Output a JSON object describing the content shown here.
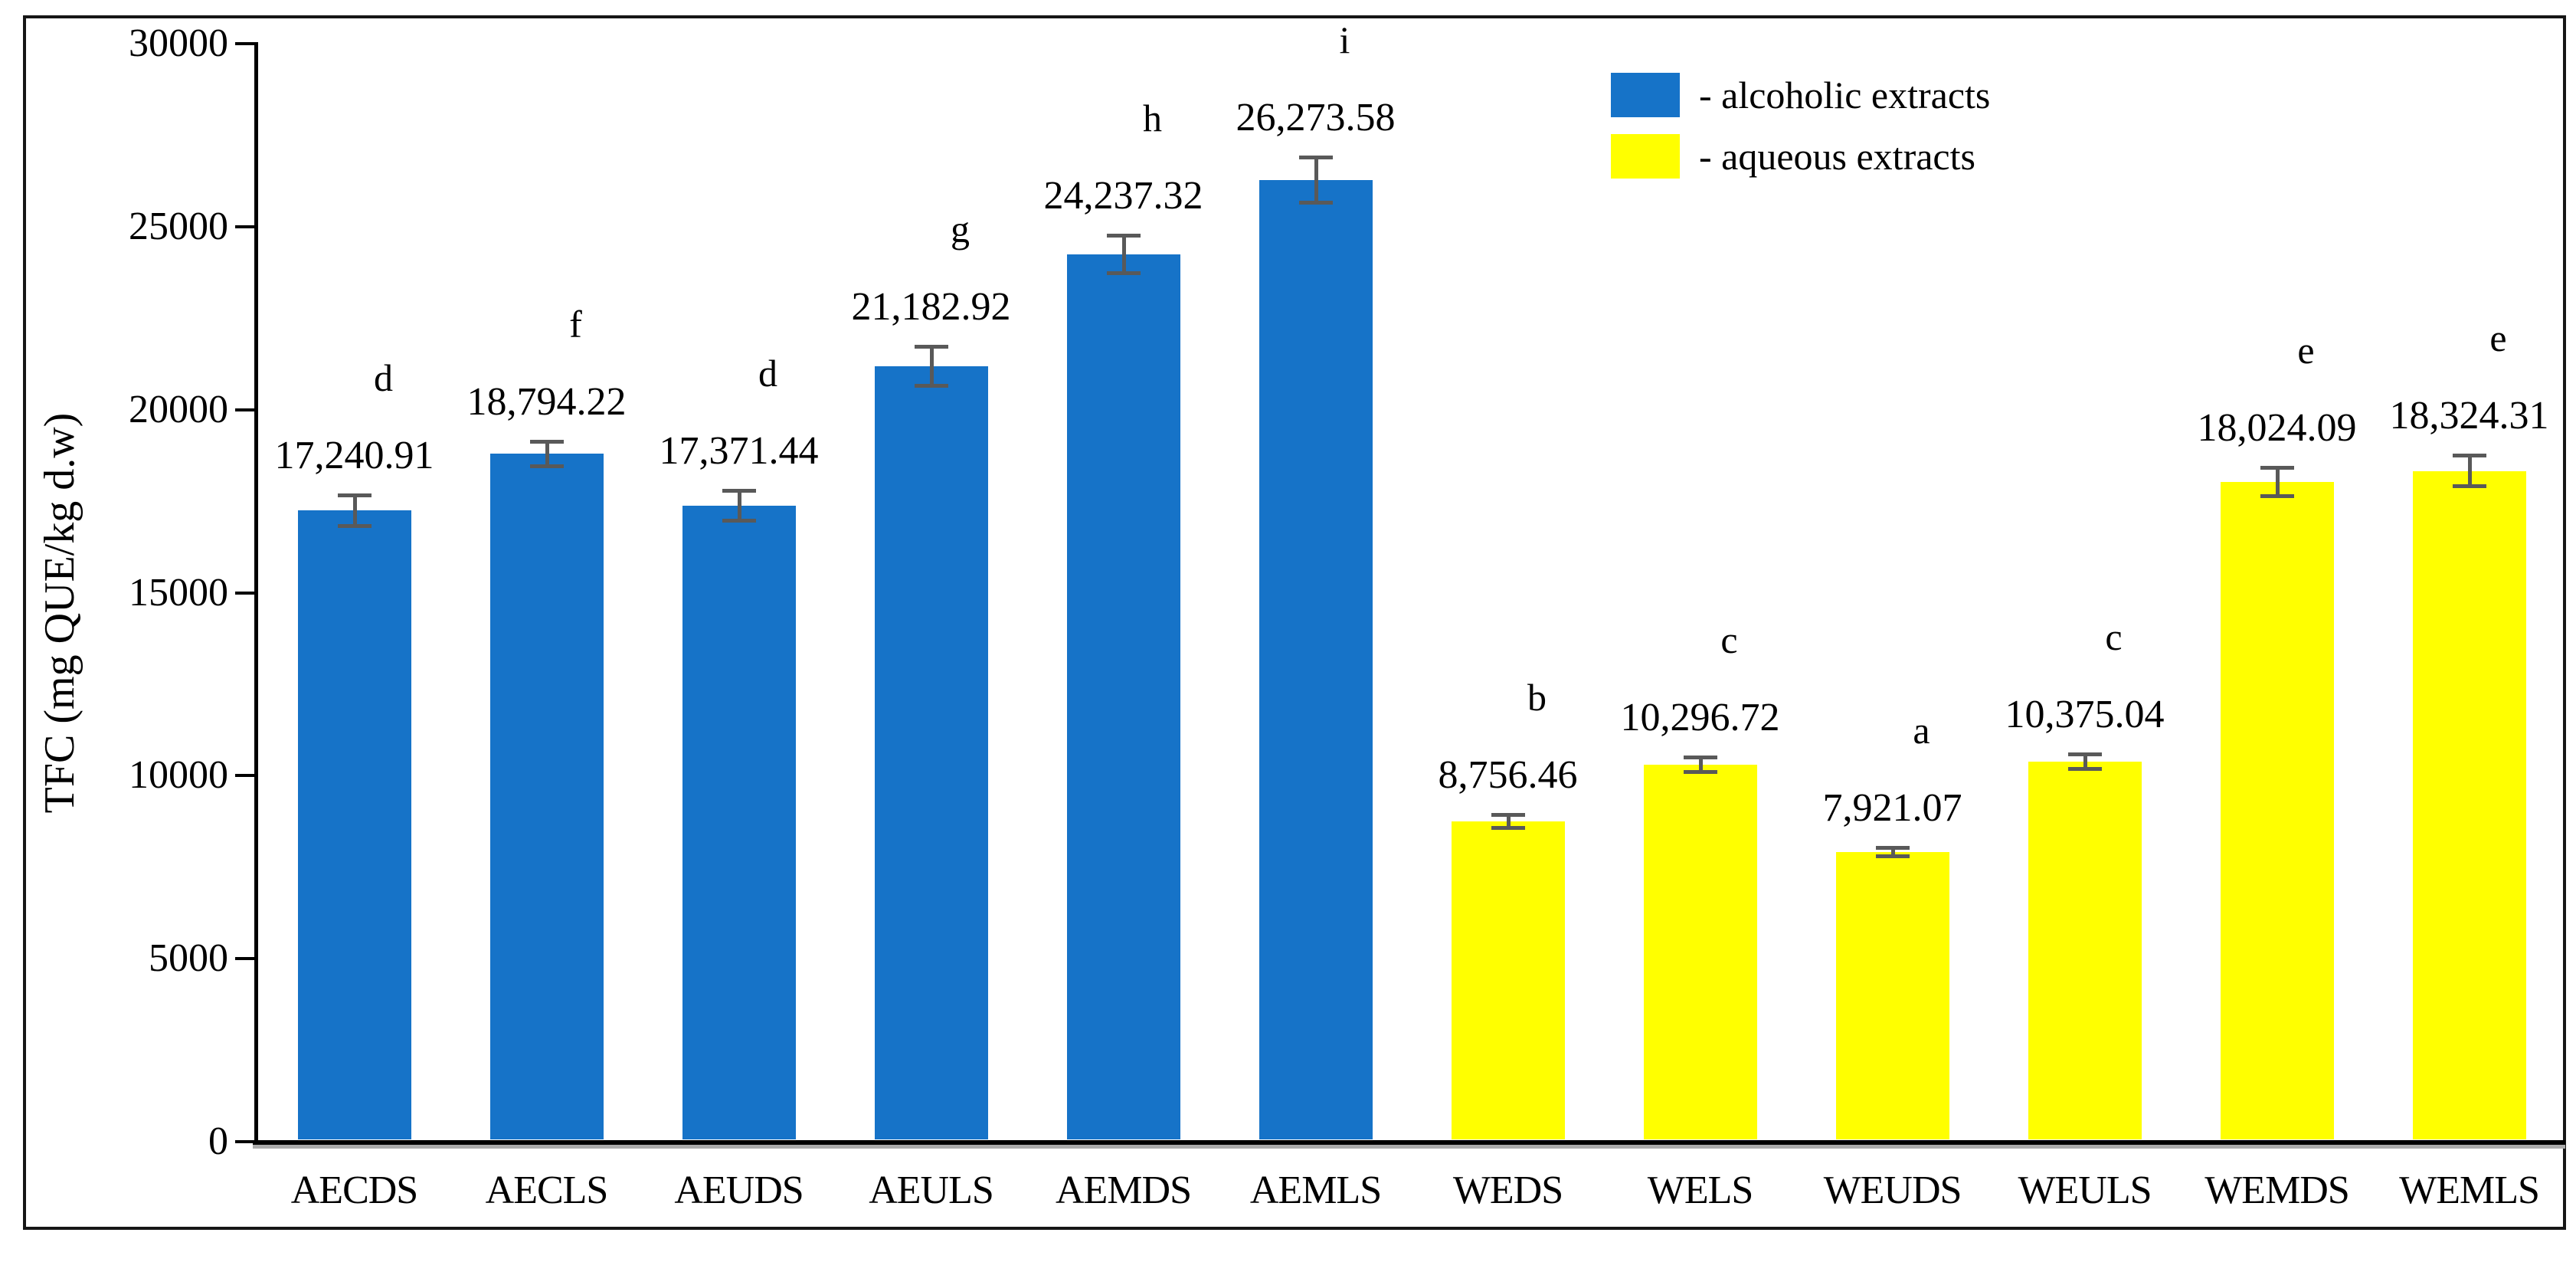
{
  "chart_data": {
    "type": "bar",
    "title": "",
    "xlabel": "",
    "ylabel": "TFC (mg QUE/kg d.w)",
    "ylim": [
      0,
      30000
    ],
    "yticks": [
      0,
      5000,
      10000,
      15000,
      20000,
      25000,
      30000
    ],
    "grid": false,
    "legend_position": "top-right",
    "categories": [
      "AECDS",
      "AECLS",
      "AEUDS",
      "AEULS",
      "AEMDS",
      "AEMLS",
      "WEDS",
      "WELS",
      "WEUDS",
      "WEULS",
      "WEMDS",
      "WEMLS"
    ],
    "series": [
      {
        "name": "alcoholic extracts",
        "color": "#1673C8",
        "values": [
          17240.91,
          18794.22,
          17371.44,
          21182.92,
          24237.32,
          26273.58,
          null,
          null,
          null,
          null,
          null,
          null
        ]
      },
      {
        "name": "aqueous extracts",
        "color": "#FFFF00",
        "values": [
          null,
          null,
          null,
          null,
          null,
          null,
          8756.46,
          10296.72,
          7921.07,
          10375.04,
          18024.09,
          18324.31
        ]
      }
    ],
    "bars": [
      {
        "category": "AECDS",
        "value": 17240.91,
        "label": "17,240.91",
        "letter": "d",
        "group": "alcoholic",
        "error_est": 420
      },
      {
        "category": "AECLS",
        "value": 18794.22,
        "label": "18,794.22",
        "letter": "f",
        "group": "alcoholic",
        "error_est": 350
      },
      {
        "category": "AEUDS",
        "value": 17371.44,
        "label": "17,371.44",
        "letter": "d",
        "group": "alcoholic",
        "error_est": 420
      },
      {
        "category": "AEULS",
        "value": 21182.92,
        "label": "21,182.92",
        "letter": "g",
        "group": "alcoholic",
        "error_est": 545
      },
      {
        "category": "AEMDS",
        "value": 24237.32,
        "label": "24,237.32",
        "letter": "h",
        "group": "alcoholic",
        "error_est": 525
      },
      {
        "category": "AEMLS",
        "value": 26273.58,
        "label": "26,273.58",
        "letter": "i",
        "group": "alcoholic",
        "error_est": 630
      },
      {
        "category": "WEDS",
        "value": 8756.46,
        "label": "8,756.46",
        "letter": "b",
        "group": "aqueous",
        "error_est": 190
      },
      {
        "category": "WELS",
        "value": 10296.72,
        "label": "10,296.72",
        "letter": "c",
        "group": "aqueous",
        "error_est": 210
      },
      {
        "category": "WEUDS",
        "value": 7921.07,
        "label": "7,921.07",
        "letter": "a",
        "group": "aqueous",
        "error_est": 125
      },
      {
        "category": "WEULS",
        "value": 10375.04,
        "label": "10,375.04",
        "letter": "c",
        "group": "aqueous",
        "error_est": 210
      },
      {
        "category": "WEMDS",
        "value": 18024.09,
        "label": "18,024.09",
        "letter": "e",
        "group": "aqueous",
        "error_est": 400
      },
      {
        "category": "WEMLS",
        "value": 18324.31,
        "label": "18,324.31",
        "letter": "e",
        "group": "aqueous",
        "error_est": 430
      }
    ],
    "legend": [
      {
        "label": "- alcoholic extracts",
        "color": "#1673C8"
      },
      {
        "label": "- aqueous extracts",
        "color": "#FFFF00"
      }
    ],
    "colors": {
      "alcoholic": "#1673C8",
      "aqueous": "#FFFF00",
      "error_bar": "#595959",
      "axis": "#000000",
      "text": "#000000"
    }
  }
}
